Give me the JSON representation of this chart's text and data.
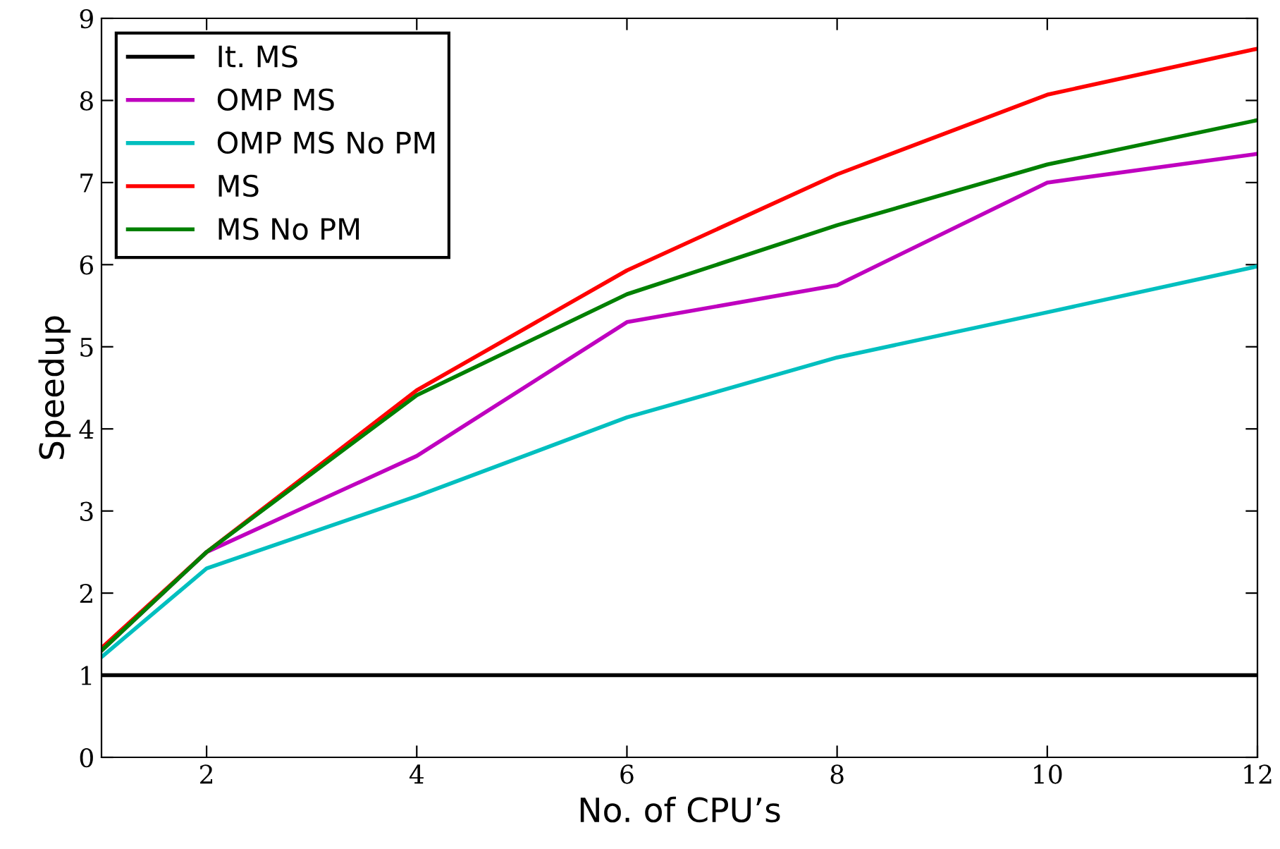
{
  "chart_data": {
    "type": "line",
    "xlabel": "No. of CPU’s",
    "ylabel": "Speedup",
    "x": [
      1,
      2,
      4,
      6,
      8,
      10,
      12
    ],
    "series": [
      {
        "name": "It. MS",
        "color": "#000000",
        "values": [
          1,
          1,
          1,
          1,
          1,
          1,
          1
        ]
      },
      {
        "name": "OMP MS",
        "color": "#bf00bf",
        "values": [
          1.3,
          2.5,
          3.67,
          5.3,
          5.75,
          7.0,
          7.35
        ]
      },
      {
        "name": "OMP MS No PM",
        "color": "#00bfbf",
        "values": [
          1.22,
          2.3,
          3.18,
          4.14,
          4.87,
          5.42,
          5.98
        ]
      },
      {
        "name": "MS",
        "color": "#ff0000",
        "values": [
          1.33,
          2.5,
          4.47,
          5.93,
          7.1,
          8.07,
          8.63
        ]
      },
      {
        "name": "MS No PM",
        "color": "#008000",
        "values": [
          1.3,
          2.5,
          4.41,
          5.64,
          6.48,
          7.22,
          7.76
        ]
      }
    ],
    "xlim": [
      1,
      12
    ],
    "xticks": [
      2,
      4,
      6,
      8,
      10,
      12
    ],
    "ylim": [
      0,
      9
    ],
    "yticks": [
      0,
      1,
      2,
      3,
      4,
      5,
      6,
      7,
      8,
      9
    ],
    "legend": "top left",
    "grid": false,
    "marker": "none",
    "line_style": "solid"
  }
}
